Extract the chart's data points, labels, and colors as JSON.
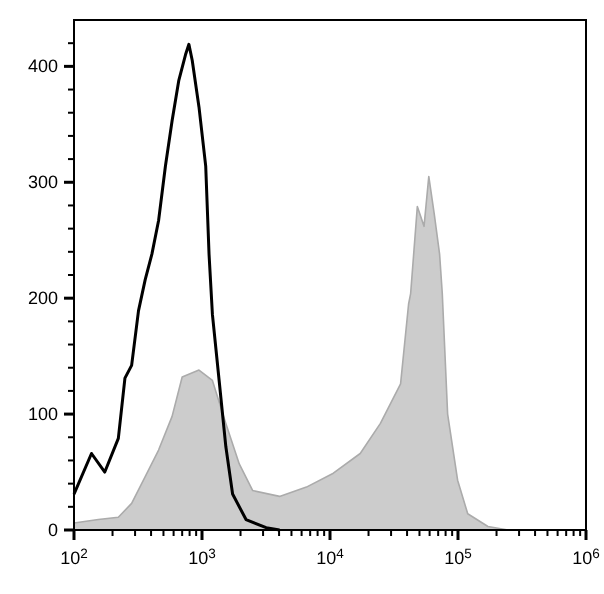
{
  "chart_data": {
    "type": "area",
    "log": "x",
    "xlim": [
      100,
      1000000
    ],
    "ylim": [
      0,
      440
    ],
    "xticks": [
      {
        "value": 100,
        "label": "10$^{2}$"
      },
      {
        "value": 200,
        "label": null
      },
      {
        "value": 300,
        "label": null
      },
      {
        "value": 400,
        "label": null
      },
      {
        "value": 500,
        "label": null
      },
      {
        "value": 600,
        "label": null
      },
      {
        "value": 700,
        "label": null
      },
      {
        "value": 800,
        "label": null
      },
      {
        "value": 900,
        "label": null
      },
      {
        "value": 1000,
        "label": "10$^{3}$"
      },
      {
        "value": 2000,
        "label": null
      },
      {
        "value": 3000,
        "label": null
      },
      {
        "value": 4000,
        "label": null
      },
      {
        "value": 5000,
        "label": null
      },
      {
        "value": 6000,
        "label": null
      },
      {
        "value": 7000,
        "label": null
      },
      {
        "value": 8000,
        "label": null
      },
      {
        "value": 9000,
        "label": null
      },
      {
        "value": 10000,
        "label": "10$^{4}$"
      },
      {
        "value": 20000,
        "label": null
      },
      {
        "value": 30000,
        "label": null
      },
      {
        "value": 40000,
        "label": null
      },
      {
        "value": 50000,
        "label": null
      },
      {
        "value": 60000,
        "label": null
      },
      {
        "value": 70000,
        "label": null
      },
      {
        "value": 80000,
        "label": null
      },
      {
        "value": 90000,
        "label": null
      },
      {
        "value": 100000,
        "label": "10$^{5}$"
      },
      {
        "value": 200000,
        "label": null
      },
      {
        "value": 300000,
        "label": null
      },
      {
        "value": 400000,
        "label": null
      },
      {
        "value": 500000,
        "label": null
      },
      {
        "value": 600000,
        "label": null
      },
      {
        "value": 700000,
        "label": null
      },
      {
        "value": 800000,
        "label": null
      },
      {
        "value": 900000,
        "label": null
      },
      {
        "value": 1000000,
        "label": "10$^{6}$"
      }
    ],
    "yticks": [
      0,
      {
        "value": 20,
        "label": null
      },
      {
        "value": 40,
        "label": null
      },
      {
        "value": 60,
        "label": null
      },
      {
        "value": 80,
        "label": null
      },
      100,
      {
        "value": 120,
        "label": null
      },
      {
        "value": 140,
        "label": null
      },
      {
        "value": 160,
        "label": null
      },
      {
        "value": 180,
        "label": null
      },
      200,
      {
        "value": 220,
        "label": null
      },
      {
        "value": 240,
        "label": null
      },
      {
        "value": 260,
        "label": null
      },
      {
        "value": 280,
        "label": null
      },
      300,
      {
        "value": 320,
        "label": null
      },
      {
        "value": 340,
        "label": null
      },
      {
        "value": 360,
        "label": null
      },
      {
        "value": 380,
        "label": null
      },
      400,
      {
        "value": 420,
        "label": null
      }
    ],
    "grid": false,
    "series": [
      {
        "color": "#cccccc",
        "x": [
          100,
          155,
          222,
          282,
          360,
          458,
          584,
          700,
          947,
          1206,
          1535,
          1955,
          2490,
          4036,
          6546,
          10620,
          17220,
          24760,
          35590,
          41120,
          42660,
          48110,
          54270,
          59120,
          65170,
          71810,
          75370,
          82990,
          99310,
          119100,
          171400,
          246000
        ],
        "values": [
          6,
          9,
          11,
          23,
          46,
          69,
          98,
          132,
          138,
          129,
          92,
          57,
          34,
          29,
          37,
          49,
          66,
          92,
          126,
          195,
          204,
          279,
          262,
          305,
          273,
          238,
          204,
          100,
          43,
          14,
          3,
          0
        ]
      },
      {
        "type": "line",
        "color": "#000000",
        "x": [
          100,
          137,
          174,
          222,
          250,
          282,
          319,
          360,
          406,
          458,
          518,
          584,
          659,
          743,
          790,
          839,
          947,
          1069,
          1135,
          1206,
          1361,
          1535,
          1734,
          2208,
          3170,
          4036
        ],
        "values": [
          31,
          66,
          50,
          79,
          131,
          142,
          189,
          216,
          238,
          267,
          314,
          353,
          388,
          410,
          419,
          405,
          365,
          314,
          238,
          186,
          129,
          72,
          31,
          9,
          2,
          0
        ]
      }
    ]
  }
}
